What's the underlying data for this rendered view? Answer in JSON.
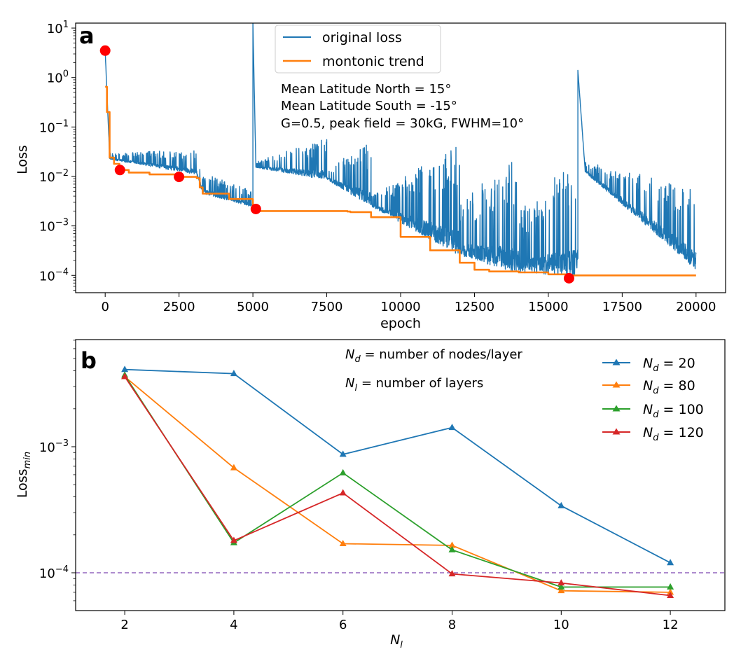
{
  "chart_data": [
    {
      "type": "line",
      "panel_label": "a",
      "xlabel": "epoch",
      "ylabel": "Loss",
      "yscale": "log",
      "xlim": [
        -1000,
        21000
      ],
      "ylim_log10": [
        -4.35,
        1.1
      ],
      "x_ticks": [
        0,
        2500,
        5000,
        7500,
        10000,
        12500,
        15000,
        17500,
        20000
      ],
      "x_tick_labels": [
        "0",
        "2500",
        "5000",
        "7500",
        "10000",
        "12500",
        "15000",
        "17500",
        "20000"
      ],
      "y_ticks_log10": [
        1,
        0,
        -1,
        -2,
        -3,
        -4
      ],
      "y_tick_labels": [
        {
          "base": "10",
          "exp": "1"
        },
        {
          "base": "10",
          "exp": "0"
        },
        {
          "base": "10",
          "exp": "−1"
        },
        {
          "base": "10",
          "exp": "−2"
        },
        {
          "base": "10",
          "exp": "−3"
        },
        {
          "base": "10",
          "exp": "−4"
        }
      ],
      "legend": {
        "position": "upper-center",
        "entries": [
          {
            "label": "original loss",
            "color": "#1f77b4"
          },
          {
            "label": "montonic trend",
            "color": "#ff7f0e"
          }
        ]
      },
      "annotations": [
        "Mean Latitude North = 15°",
        "Mean Latitude South = -15°",
        "G=0.5, peak field = 30kG, FWHM=10°"
      ],
      "series": [
        {
          "name": "original loss",
          "color": "#1f77b4",
          "description": "noisy training loss with spikes near epochs 5000 and 16000",
          "segments": [
            {
              "x0": 0,
              "x1": 150,
              "base": [
                3.5,
                0.025
              ],
              "upper": [
                3.5,
                0.03
              ]
            },
            {
              "x0": 150,
              "x1": 3100,
              "base": [
                0.022,
                0.011
              ],
              "upper": [
                0.03,
                0.035
              ]
            },
            {
              "x0": 3100,
              "x1": 3300,
              "base": [
                0.011,
                0.0045
              ],
              "upper": [
                0.02,
                0.012
              ]
            },
            {
              "x0": 3300,
              "x1": 5000,
              "base": [
                0.0045,
                0.0024
              ],
              "upper": [
                0.012,
                0.005
              ]
            },
            {
              "x0": 5000,
              "x1": 5100,
              "base": [
                13,
                0.016
              ],
              "upper": [
                13,
                0.016
              ]
            },
            {
              "x0": 5100,
              "x1": 7500,
              "base": [
                0.015,
                0.0085
              ],
              "upper": [
                0.02,
                0.06
              ]
            },
            {
              "x0": 7500,
              "x1": 9000,
              "base": [
                0.0085,
                0.0025
              ],
              "upper": [
                0.015,
                0.05
              ]
            },
            {
              "x0": 9000,
              "x1": 12000,
              "base": [
                0.0025,
                0.00025
              ],
              "upper": [
                0.004,
                0.05
              ]
            },
            {
              "x0": 12000,
              "x1": 14000,
              "base": [
                0.00025,
                0.00011
              ],
              "upper": [
                0.003,
                0.03
              ]
            },
            {
              "x0": 14000,
              "x1": 16000,
              "base": [
                0.00011,
                0.0001
              ],
              "upper": [
                0.002,
                0.03
              ]
            },
            {
              "x0": 16000,
              "x1": 16250,
              "base": [
                1.4,
                0.012
              ],
              "upper": [
                1.4,
                0.015
              ]
            },
            {
              "x0": 16250,
              "x1": 20000,
              "base": [
                0.012,
                0.00013
              ],
              "upper": [
                0.02,
                0.006
              ]
            }
          ]
        },
        {
          "name": "montonic trend",
          "color": "#ff7f0e",
          "x": [
            0,
            60,
            150,
            300,
            480,
            800,
            1500,
            2500,
            3100,
            3200,
            3300,
            4200,
            5000,
            5050,
            5200,
            8200,
            8300,
            9000,
            10000,
            11000,
            12000,
            12500,
            13000,
            14000,
            15000,
            15700,
            16000,
            20000
          ],
          "y": [
            0.65,
            0.2,
            0.024,
            0.018,
            0.0135,
            0.012,
            0.011,
            0.0098,
            0.0092,
            0.006,
            0.0045,
            0.0035,
            0.0025,
            0.0022,
            0.002,
            0.00195,
            0.0019,
            0.0015,
            0.0006,
            0.00032,
            0.00018,
            0.00013,
            0.00012,
            0.000115,
            0.000105,
            0.0001,
            0.0001,
            0.0001
          ]
        },
        {
          "name": "minima markers",
          "color": "#ff0000",
          "x": [
            0,
            500,
            2500,
            5100,
            15700
          ],
          "y": [
            3.5,
            0.0135,
            0.0098,
            0.0022,
            8.75e-05
          ]
        }
      ]
    },
    {
      "type": "line",
      "panel_label": "b",
      "xlabel": {
        "base": "N",
        "sub": "l"
      },
      "ylabel": {
        "base": "Loss",
        "sub": "min"
      },
      "yscale": "log",
      "xlim": [
        1.1,
        13.0
      ],
      "ylim_log10": [
        -4.3,
        -2.15
      ],
      "x_ticks": [
        2,
        4,
        6,
        8,
        10,
        12
      ],
      "x_tick_labels": [
        "2",
        "4",
        "6",
        "8",
        "10",
        "12"
      ],
      "y_ticks_log10": [
        -3,
        -4
      ],
      "y_tick_labels": [
        {
          "base": "10",
          "exp": "−3"
        },
        {
          "base": "10",
          "exp": "−4"
        }
      ],
      "hline": {
        "y": 0.0001,
        "color": "#9467bd",
        "style": "dashed"
      },
      "annotations": [
        {
          "sym": "N",
          "sub": "d",
          "text": " = number of nodes/layer"
        },
        {
          "sym": "N",
          "sub": "l",
          "text": " = number of layers"
        }
      ],
      "legend": {
        "position": "upper-right",
        "entries": [
          {
            "sym": "N",
            "sub": "d",
            "value": " = 20",
            "color": "#1f77b4"
          },
          {
            "sym": "N",
            "sub": "d",
            "value": " = 80",
            "color": "#ff7f0e"
          },
          {
            "sym": "N",
            "sub": "d",
            "value": " = 100",
            "color": "#2ca02c"
          },
          {
            "sym": "N",
            "sub": "d",
            "value": " = 120",
            "color": "#d62728"
          }
        ]
      },
      "x": [
        2,
        4,
        6,
        8,
        10,
        12
      ],
      "series": [
        {
          "name": "Nd = 20",
          "color": "#1f77b4",
          "values": [
            0.0041,
            0.0038,
            0.00087,
            0.00142,
            0.00034,
            0.00012
          ]
        },
        {
          "name": "Nd = 80",
          "color": "#ff7f0e",
          "values": [
            0.0036,
            0.00068,
            0.00017,
            0.000165,
            7.2e-05,
            7e-05
          ]
        },
        {
          "name": "Nd = 100",
          "color": "#2ca02c",
          "values": [
            0.0037,
            0.000173,
            0.00062,
            0.000152,
            7.7e-05,
            7.7e-05
          ]
        },
        {
          "name": "Nd = 120",
          "color": "#d62728",
          "values": [
            0.0036,
            0.00018,
            0.00043,
            9.8e-05,
            8.3e-05,
            6.6e-05
          ]
        }
      ]
    }
  ]
}
